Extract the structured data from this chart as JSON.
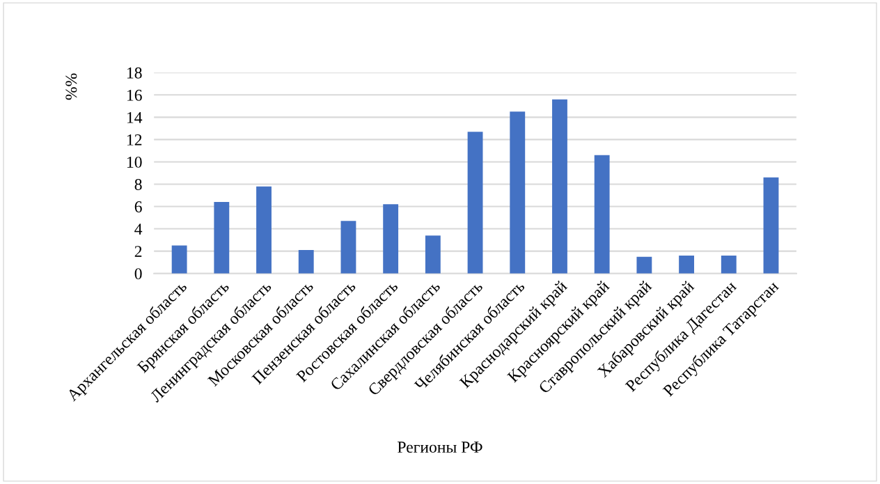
{
  "chart_data": {
    "type": "bar",
    "xlabel": "Регионы РФ",
    "ylabel": "%%",
    "categories": [
      "Архангельская область",
      "Брянская область",
      "Ленинградская область",
      "Московская область",
      "Пензенская область",
      "Ростовская область",
      "Сахалинская область",
      "Свердловская область",
      "Челябинская область",
      "Краснодарский край",
      "Красноярский край",
      "Ставропольский край",
      "Хабаровский край",
      "Республика Дагестан",
      "Республика Татарстан"
    ],
    "values": [
      2.5,
      6.4,
      7.8,
      2.1,
      4.7,
      6.2,
      3.4,
      12.7,
      14.5,
      15.6,
      10.6,
      1.5,
      1.6,
      1.6,
      8.6
    ],
    "color": "#4472c4",
    "ylim": [
      0,
      18
    ],
    "yticks": [
      0,
      2,
      4,
      6,
      8,
      10,
      12,
      14,
      16,
      18
    ],
    "grid": "y",
    "legend": false
  }
}
